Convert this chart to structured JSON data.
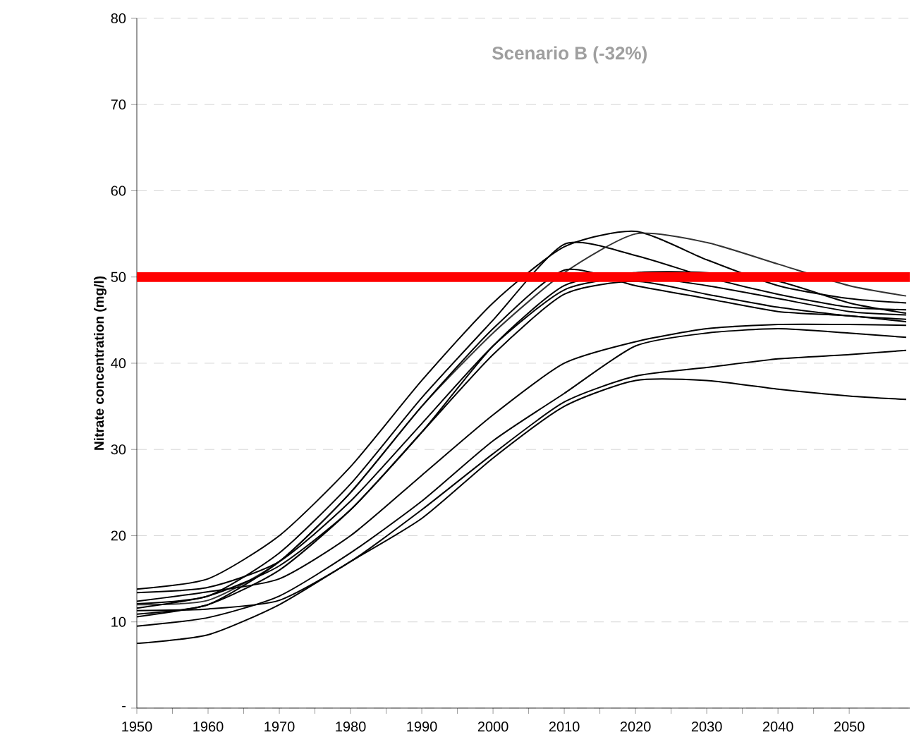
{
  "chart_data": {
    "type": "line",
    "title": "Scenario B (-32%)",
    "ylabel": "Nitrate concentration (mg/l)",
    "x": [
      1950,
      1960,
      1970,
      1980,
      1990,
      2000,
      2010,
      2020,
      2030,
      2040,
      2050,
      2058
    ],
    "series": [
      {
        "color": "#000000",
        "values": [
          13.8,
          15,
          20,
          28,
          38,
          47,
          53.5,
          55.3,
          52,
          49,
          47.5,
          47
        ]
      },
      {
        "color": "#000000",
        "values": [
          12.1,
          13,
          18,
          26,
          36,
          45,
          53.8,
          52.5,
          50,
          48,
          46.5,
          46.2
        ]
      },
      {
        "color": "#333333",
        "values": [
          12.0,
          12.5,
          17,
          25,
          35,
          43.5,
          50.5,
          55,
          54,
          51.5,
          49,
          47.8
        ]
      },
      {
        "color": "#000000",
        "values": [
          10.9,
          12,
          17,
          25,
          35,
          44,
          50.8,
          49,
          47.5,
          46,
          45.5,
          44.8
        ]
      },
      {
        "color": "#000000",
        "values": [
          10.6,
          12,
          16,
          23,
          32,
          42,
          49,
          50.5,
          50.5,
          49.5,
          47,
          45.8
        ]
      },
      {
        "color": "#000000",
        "values": [
          13.4,
          14,
          17,
          24,
          33,
          42,
          48.5,
          50,
          49,
          47.5,
          46,
          45.6
        ]
      },
      {
        "color": "#000000",
        "values": [
          11.6,
          13,
          16.5,
          23,
          32,
          41,
          48,
          49.5,
          48,
          46.5,
          45.5,
          45.1
        ]
      },
      {
        "color": "#000000",
        "values": [
          12.4,
          13.5,
          15,
          20,
          27,
          34,
          40,
          42.5,
          44,
          44.5,
          44.5,
          44.4
        ]
      },
      {
        "color": "#000000",
        "values": [
          9.5,
          10.5,
          13,
          18,
          24,
          31,
          36.5,
          42,
          43.5,
          44,
          43.5,
          43
        ]
      },
      {
        "color": "#000000",
        "values": [
          11.3,
          11.5,
          12.5,
          17,
          23,
          29.5,
          35.5,
          38.5,
          39.5,
          40.5,
          41,
          41.5
        ]
      },
      {
        "color": "#000000",
        "values": [
          7.5,
          8.5,
          12,
          17,
          22,
          29,
          35,
          38,
          38,
          37,
          36.2,
          35.8
        ]
      }
    ],
    "xlim": [
      1950,
      2058.5
    ],
    "ylim": [
      0,
      80
    ],
    "xticks": [
      1950,
      1960,
      1970,
      1980,
      1990,
      2000,
      2010,
      2020,
      2030,
      2040,
      2050
    ],
    "yticks": [
      {
        "value": 0,
        "label": "-"
      },
      10,
      20,
      30,
      40,
      50,
      60,
      70,
      80
    ],
    "ref_lines": [
      {
        "axis": "y",
        "value": 50,
        "color": "#ff0000"
      }
    ],
    "grid": "y",
    "marker": "none",
    "line_style": "solid"
  }
}
